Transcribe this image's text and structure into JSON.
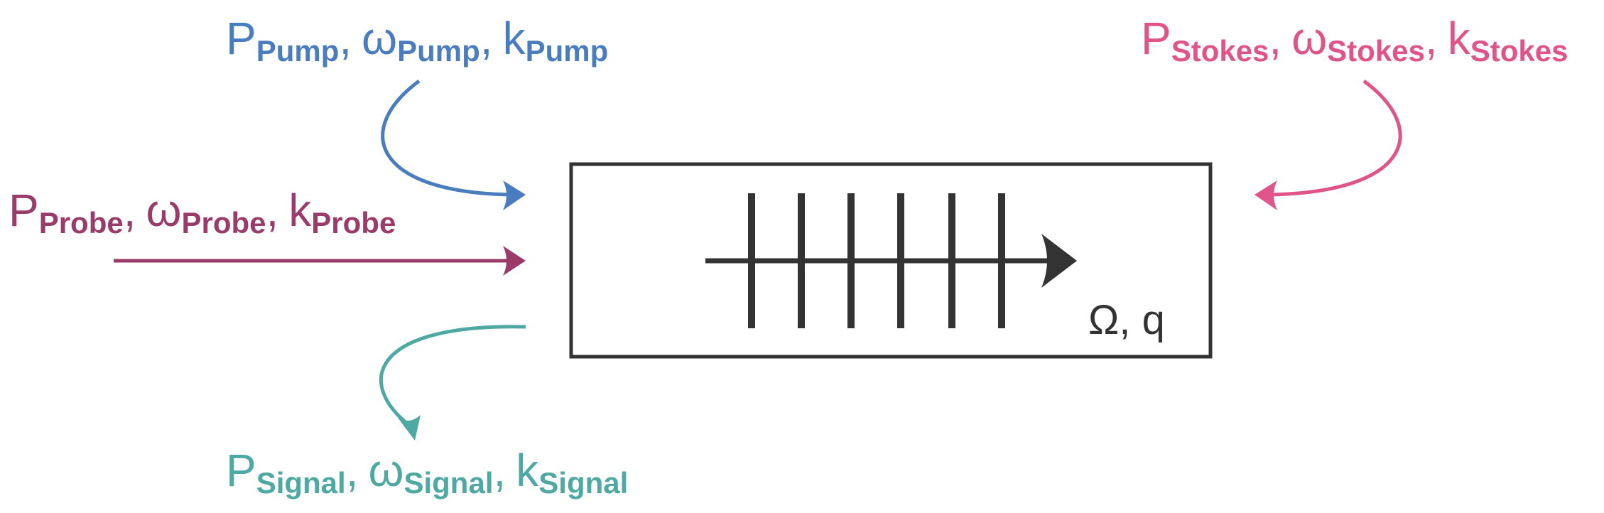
{
  "colors": {
    "pump": "#4a7cc0",
    "probe": "#9a3c6a",
    "stokes": "#e05488",
    "signal": "#4fa9a3",
    "outline": "#333333"
  },
  "pump": {
    "p": "P",
    "p_sub": "Pump",
    "w": "ω",
    "w_sub": "Pump",
    "k": "k",
    "k_sub": "Pump",
    "sep1": ",",
    "sep2": ","
  },
  "probe": {
    "p": "P",
    "p_sub": "Probe",
    "w": "ω",
    "w_sub": "Probe",
    "k": "k",
    "k_sub": "Probe",
    "sep1": ",",
    "sep2": ","
  },
  "stokes": {
    "p": "P",
    "p_sub": "Stokes",
    "w": "ω",
    "w_sub": "Stokes",
    "k": "k",
    "k_sub": "Stokes",
    "sep1": ",",
    "sep2": ","
  },
  "signal": {
    "p": "P",
    "p_sub": "Signal",
    "w": "ω",
    "w_sub": "Signal",
    "k": "k",
    "k_sub": "Signal",
    "sep1": ",",
    "sep2": ","
  },
  "mode_label": "Ω, q"
}
